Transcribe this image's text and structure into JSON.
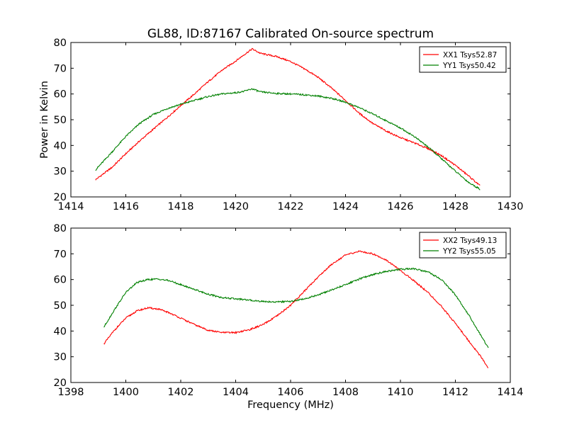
{
  "figure": {
    "title": "GL88, ID:87167 Calibrated On-source spectrum",
    "ylabel": "Power in Kelvin",
    "xlabel": "Frequency (MHz)"
  },
  "chart_data": [
    {
      "type": "line",
      "title": "GL88, ID:87167 Calibrated On-source spectrum",
      "xlabel": "",
      "ylabel": "Power in Kelvin",
      "xlim": [
        1414,
        1430
      ],
      "ylim": [
        20,
        80
      ],
      "xticks": [
        "1414",
        "1416",
        "1418",
        "1420",
        "1422",
        "1424",
        "1426",
        "1428",
        "1430"
      ],
      "yticks": [
        "20",
        "30",
        "40",
        "50",
        "60",
        "70",
        "80"
      ],
      "legend_position": "top-right",
      "grid": false,
      "series": [
        {
          "name": "XX1 Tsys52.87",
          "color": "#ff0000",
          "x": [
            1414.9,
            1415.5,
            1416.0,
            1416.5,
            1417.0,
            1417.5,
            1418.0,
            1418.5,
            1419.0,
            1419.5,
            1420.0,
            1420.3,
            1420.6,
            1420.9,
            1421.5,
            1422.0,
            1422.5,
            1423.0,
            1423.5,
            1424.0,
            1424.5,
            1425.0,
            1425.5,
            1426.0,
            1426.5,
            1427.0,
            1427.5,
            1428.0,
            1428.5,
            1428.9
          ],
          "y": [
            26.7,
            31.5,
            36.8,
            41.7,
            46.3,
            50.8,
            55.5,
            60.0,
            64.8,
            69.2,
            72.8,
            75.2,
            77.5,
            75.8,
            74.5,
            72.6,
            69.8,
            66.5,
            62.2,
            57.5,
            52.5,
            48.5,
            45.5,
            43.0,
            41.0,
            38.8,
            36.0,
            32.3,
            28.0,
            24.3
          ]
        },
        {
          "name": "YY1 Tsys50.42",
          "color": "#008000",
          "x": [
            1414.9,
            1415.5,
            1416.0,
            1416.5,
            1417.0,
            1417.5,
            1418.0,
            1418.5,
            1419.0,
            1419.5,
            1420.0,
            1420.3,
            1420.6,
            1420.9,
            1421.5,
            1422.0,
            1422.5,
            1423.0,
            1423.5,
            1424.0,
            1424.5,
            1425.0,
            1425.5,
            1426.0,
            1426.5,
            1427.0,
            1427.5,
            1428.0,
            1428.5,
            1428.9
          ],
          "y": [
            30.5,
            37.5,
            43.5,
            48.5,
            52.0,
            54.3,
            56.0,
            57.5,
            59.0,
            60.0,
            60.5,
            61.0,
            62.0,
            60.8,
            60.2,
            60.0,
            59.7,
            59.2,
            58.3,
            56.8,
            54.7,
            52.2,
            49.5,
            46.8,
            43.5,
            39.5,
            34.8,
            30.0,
            25.5,
            23.0
          ]
        }
      ]
    },
    {
      "type": "line",
      "title": "",
      "xlabel": "Frequency (MHz)",
      "ylabel": "",
      "xlim": [
        1398,
        1414
      ],
      "ylim": [
        20,
        80
      ],
      "xticks": [
        "1398",
        "1400",
        "1402",
        "1404",
        "1406",
        "1408",
        "1410",
        "1412",
        "1414"
      ],
      "yticks": [
        "20",
        "30",
        "40",
        "50",
        "60",
        "70",
        "80"
      ],
      "legend_position": "top-right",
      "grid": false,
      "series": [
        {
          "name": "XX2 Tsys49.13",
          "color": "#ff0000",
          "x": [
            1399.2,
            1399.6,
            1400.0,
            1400.4,
            1400.8,
            1401.2,
            1401.6,
            1402.0,
            1402.5,
            1403.0,
            1403.5,
            1404.0,
            1404.5,
            1405.0,
            1405.5,
            1406.0,
            1406.5,
            1407.0,
            1407.5,
            1408.0,
            1408.5,
            1409.0,
            1409.5,
            1410.0,
            1410.5,
            1411.0,
            1411.5,
            1412.0,
            1412.5,
            1413.0,
            1413.2
          ],
          "y": [
            35.0,
            40.5,
            45.0,
            47.8,
            49.0,
            48.5,
            47.0,
            45.0,
            42.5,
            40.3,
            39.4,
            39.4,
            40.5,
            42.5,
            45.8,
            50.0,
            55.5,
            61.0,
            66.0,
            69.5,
            71.0,
            70.0,
            67.5,
            63.5,
            59.5,
            55.0,
            49.5,
            43.0,
            36.0,
            29.0,
            25.5
          ]
        },
        {
          "name": "YY2 Tsys55.05",
          "color": "#008000",
          "x": [
            1399.2,
            1399.6,
            1400.0,
            1400.4,
            1400.8,
            1401.2,
            1401.6,
            1402.0,
            1402.5,
            1403.0,
            1403.5,
            1404.0,
            1404.5,
            1405.0,
            1405.5,
            1406.0,
            1406.5,
            1407.0,
            1407.5,
            1408.0,
            1408.5,
            1409.0,
            1409.5,
            1410.0,
            1410.5,
            1411.0,
            1411.5,
            1412.0,
            1412.5,
            1413.0,
            1413.2
          ],
          "y": [
            41.5,
            48.5,
            55.0,
            58.8,
            60.0,
            60.2,
            59.5,
            58.0,
            56.2,
            54.3,
            53.0,
            52.5,
            52.0,
            51.5,
            51.3,
            51.5,
            52.5,
            54.0,
            56.0,
            58.0,
            60.2,
            62.0,
            63.2,
            64.0,
            64.2,
            63.0,
            60.0,
            54.0,
            46.0,
            37.0,
            33.5
          ]
        }
      ]
    }
  ]
}
